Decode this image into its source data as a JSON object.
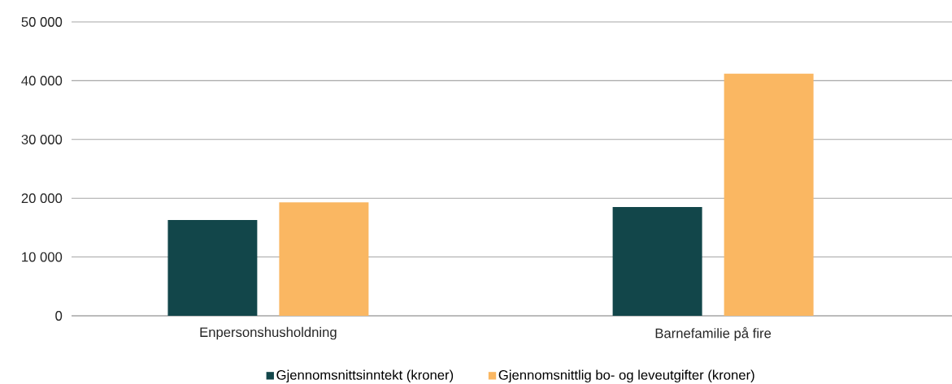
{
  "chart_data": {
    "type": "bar",
    "categories": [
      "Enpersonshusholdning",
      "Barnefamilie på fire"
    ],
    "series": [
      {
        "name": "Gjennomsnittsinntekt (kroner)",
        "color": "#12464a",
        "values": [
          16300,
          18500
        ]
      },
      {
        "name": "Gjennomsnittlig bo- og leveutgifter (kroner)",
        "color": "#fab762",
        "values": [
          19300,
          41200
        ]
      }
    ],
    "ylim": [
      0,
      50000
    ],
    "yticks": [
      {
        "value": 0,
        "label": "0"
      },
      {
        "value": 10000,
        "label": "10 000"
      },
      {
        "value": 20000,
        "label": "20 000"
      },
      {
        "value": 30000,
        "label": "30 000"
      },
      {
        "value": 40000,
        "label": "40 000"
      },
      {
        "value": 50000,
        "label": "50 000"
      }
    ],
    "grid": "y",
    "legend": "bottom"
  }
}
